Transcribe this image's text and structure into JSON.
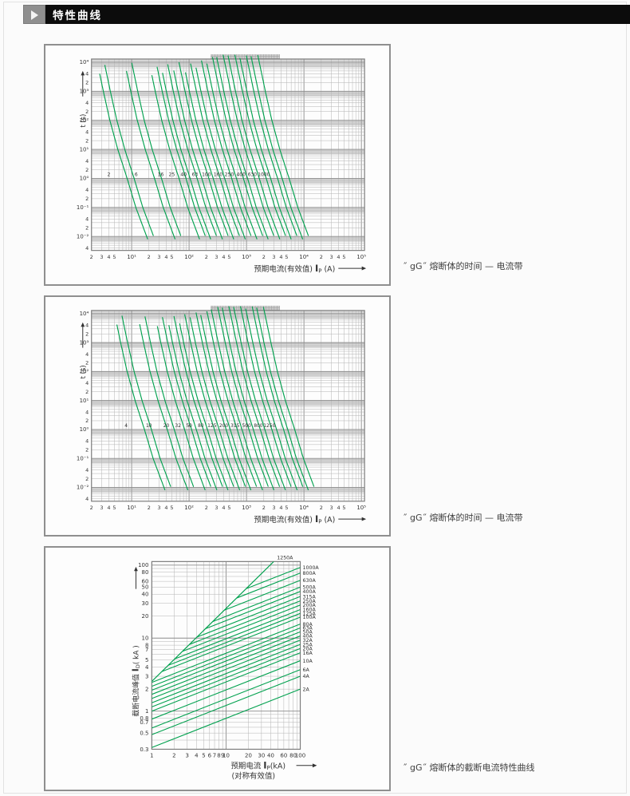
{
  "header": {
    "title": "特性曲线"
  },
  "colors": {
    "green": "#00A14E",
    "grid_minor": "#b3b3b3",
    "grid_major": "#8c8c8c",
    "band": "#d7d7d7",
    "frame": "#7d7d7d",
    "tab_bg": "#cbcbcb",
    "tab_line": "#9d9d9d",
    "tick_text": "#333333",
    "caption_text": "#3f3f3f"
  },
  "captions": [
    "˝ gG˝ 熔断体的时间 — 电流带",
    "˝ gG˝ 熔断体的时间 — 电流带",
    "˝ gG˝ 熔断体的截断电流特性曲线"
  ],
  "chart_data": [
    {
      "id": "tc1",
      "type": "line",
      "subtype": "time-current-band",
      "title": "",
      "xscale": "log",
      "yscale": "log",
      "xlim": [
        2,
        115000
      ],
      "ylim": [
        0.0033,
        12800
      ],
      "xlabel_parts": {
        "prefix": "预期电流(有效值) ",
        "sym": "I",
        "sub": "P",
        "suffix": " (A)"
      },
      "ylabel_parts": {
        "prefix": "t (s)"
      },
      "x_tick_labels": [
        "2",
        "3",
        "4",
        "5",
        "10¹",
        "2",
        "3",
        "4",
        "5",
        "10²",
        "2",
        "3",
        "4",
        "5",
        "10³",
        "2",
        "3",
        "4",
        "5",
        "10⁴",
        "2",
        "3",
        "4",
        "5",
        "10⁵"
      ],
      "x_tick_values": [
        2,
        3,
        4,
        5,
        10,
        20,
        30,
        40,
        50,
        100,
        200,
        300,
        400,
        500,
        1000,
        2000,
        3000,
        4000,
        5000,
        10000,
        20000,
        30000,
        40000,
        50000,
        100000
      ],
      "y_tick_labels": [
        "10⁴",
        "4",
        "2",
        "10³",
        "4",
        "2",
        "10²",
        "4",
        "2",
        "10¹",
        "4",
        "2",
        "10⁰",
        "4",
        "2",
        "10⁻¹",
        "4",
        "2",
        "10⁻²",
        "4"
      ],
      "y_tick_values": [
        10000,
        4000,
        2000,
        1000,
        400,
        200,
        100,
        40,
        20,
        10,
        4,
        2,
        1,
        0.4,
        0.2,
        0.1,
        0.04,
        0.02,
        0.01,
        0.004
      ],
      "ratings": [
        2,
        6,
        16,
        25,
        40,
        63,
        100,
        160,
        250,
        400,
        630,
        1000
      ],
      "curve_model": {
        "t_points": [
          10000,
          1000,
          100,
          10,
          1,
          0.1,
          0.01
        ],
        "current_multiple": [
          1.45,
          1.85,
          2.4,
          3.3,
          4.8,
          6.8,
          10.5
        ],
        "band_spread": 1.15,
        "top_t_left": [
          4000,
          5000,
          3600,
          4300,
          5200,
          4500,
          6500,
          9000,
          15000,
          17000,
          14000,
          16000
        ],
        "top_t_right": [
          8000,
          9500,
          7000,
          8500,
          10000,
          9000,
          11500,
          15000,
          18000,
          18000,
          17000,
          17500
        ],
        "bottom_t_left": 0.008,
        "bottom_t_right": 0.0105,
        "label_t": 1.35
      }
    },
    {
      "id": "tc2",
      "type": "line",
      "subtype": "time-current-band",
      "title": "",
      "xscale": "log",
      "yscale": "log",
      "xlim": [
        2,
        115000
      ],
      "ylim": [
        0.0033,
        12800
      ],
      "xlabel_parts": {
        "prefix": "预期电流(有效值) ",
        "sym": "I",
        "sub": "P",
        "suffix": " (A)"
      },
      "ylabel_parts": {
        "prefix": "t (s)"
      },
      "x_tick_labels": [
        "2",
        "3",
        "4",
        "5",
        "10¹",
        "2",
        "3",
        "4",
        "5",
        "10²",
        "2",
        "3",
        "4",
        "5",
        "10³",
        "2",
        "3",
        "4",
        "5",
        "10⁴",
        "2",
        "3",
        "4",
        "5",
        "10⁵"
      ],
      "x_tick_values": [
        2,
        3,
        4,
        5,
        10,
        20,
        30,
        40,
        50,
        100,
        200,
        300,
        400,
        500,
        1000,
        2000,
        3000,
        4000,
        5000,
        10000,
        20000,
        30000,
        40000,
        50000,
        100000
      ],
      "y_tick_labels": [
        "10⁴",
        "4",
        "2",
        "10³",
        "4",
        "2",
        "10²",
        "4",
        "2",
        "10¹",
        "4",
        "2",
        "10⁰",
        "4",
        "2",
        "10⁻¹",
        "4",
        "2",
        "10⁻²",
        "4"
      ],
      "y_tick_values": [
        10000,
        4000,
        2000,
        1000,
        400,
        200,
        100,
        40,
        20,
        10,
        4,
        2,
        1,
        0.4,
        0.2,
        0.1,
        0.04,
        0.02,
        0.01,
        0.004
      ],
      "ratings": [
        4,
        10,
        20,
        32,
        50,
        80,
        125,
        200,
        315,
        500,
        800,
        1250
      ],
      "curve_model": {
        "t_points": [
          10000,
          1000,
          100,
          10,
          1,
          0.1,
          0.01
        ],
        "current_multiple": [
          1.45,
          1.85,
          2.4,
          3.3,
          4.8,
          6.8,
          10.5
        ],
        "band_spread": 1.15,
        "top_t_left": [
          4200,
          4300,
          3700,
          4000,
          4600,
          7500,
          9000,
          14000,
          16000,
          17000,
          15000,
          16000
        ],
        "top_t_right": [
          8500,
          8000,
          7600,
          8200,
          9500,
          11000,
          12000,
          17000,
          18000,
          18000,
          17500,
          17000
        ],
        "bottom_t_left": 0.008,
        "bottom_t_right": 0.0105,
        "label_t": 1.35
      }
    },
    {
      "id": "cutoff",
      "type": "line",
      "subtype": "cutoff-current",
      "title": "",
      "xscale": "log",
      "yscale": "log",
      "xlim": [
        1,
        100
      ],
      "ylim": [
        0.3,
        112
      ],
      "xlabel_parts": {
        "prefix": "预期电流 ",
        "sym": "I",
        "sub": "P",
        "suffix": "(kA)",
        "line2": "(对称有效值)"
      },
      "ylabel_parts": {
        "prefix": "截断电流峰值 ",
        "sym": "I",
        "sub": "D",
        "suffix": "( kA )"
      },
      "x_tick_labels": [
        "1",
        "2",
        "3",
        "4",
        "5",
        "6",
        "7",
        "8",
        "9",
        "10",
        "20",
        "30",
        "40",
        "60",
        "80",
        "100"
      ],
      "x_tick_values": [
        1,
        2,
        3,
        4,
        5,
        6,
        7,
        8,
        9,
        10,
        20,
        30,
        40,
        60,
        80,
        100
      ],
      "y_tick_labels": [
        "100",
        "80",
        "60",
        "50",
        "40",
        "30",
        "20",
        "10",
        "8",
        "7",
        "5",
        "4",
        "3",
        "2",
        "1",
        "0.8",
        "0.7",
        "0.5",
        "0.3"
      ],
      "y_tick_values": [
        100,
        80,
        60,
        50,
        40,
        30,
        20,
        10,
        8,
        7,
        5,
        4,
        3,
        2,
        1,
        0.8,
        0.7,
        0.5,
        0.3
      ],
      "diagonal": {
        "label": "1250A",
        "peak_factor": 2.55
      },
      "line_log_slope": 0.4,
      "series": [
        {
          "name": "2A",
          "io_at_100kA": 2.0
        },
        {
          "name": "4A",
          "io_at_100kA": 3.0
        },
        {
          "name": "6A",
          "io_at_100kA": 3.7
        },
        {
          "name": "10A",
          "io_at_100kA": 4.9
        },
        {
          "name": "16A",
          "io_at_100kA": 6.3
        },
        {
          "name": "20A",
          "io_at_100kA": 7.2
        },
        {
          "name": "25A",
          "io_at_100kA": 8.2
        },
        {
          "name": "32A",
          "io_at_100kA": 9.4
        },
        {
          "name": "40A",
          "io_at_100kA": 10.7
        },
        {
          "name": "50A",
          "io_at_100kA": 12.2
        },
        {
          "name": "63A",
          "io_at_100kA": 13.8
        },
        {
          "name": "80A",
          "io_at_100kA": 15.6
        },
        {
          "name": "100A",
          "io_at_100kA": 19.4
        },
        {
          "name": "125A",
          "io_at_100kA": 21.8
        },
        {
          "name": "160A",
          "io_at_100kA": 24.6
        },
        {
          "name": "200A",
          "io_at_100kA": 28.4
        },
        {
          "name": "250A",
          "io_at_100kA": 32.4
        },
        {
          "name": "315A",
          "io_at_100kA": 37.2
        },
        {
          "name": "400A",
          "io_at_100kA": 43.6
        },
        {
          "name": "500A",
          "io_at_100kA": 50
        },
        {
          "name": "630A",
          "io_at_100kA": 62
        },
        {
          "name": "800A",
          "io_at_100kA": 78
        },
        {
          "name": "1000A",
          "io_at_100kA": 93
        }
      ]
    }
  ]
}
